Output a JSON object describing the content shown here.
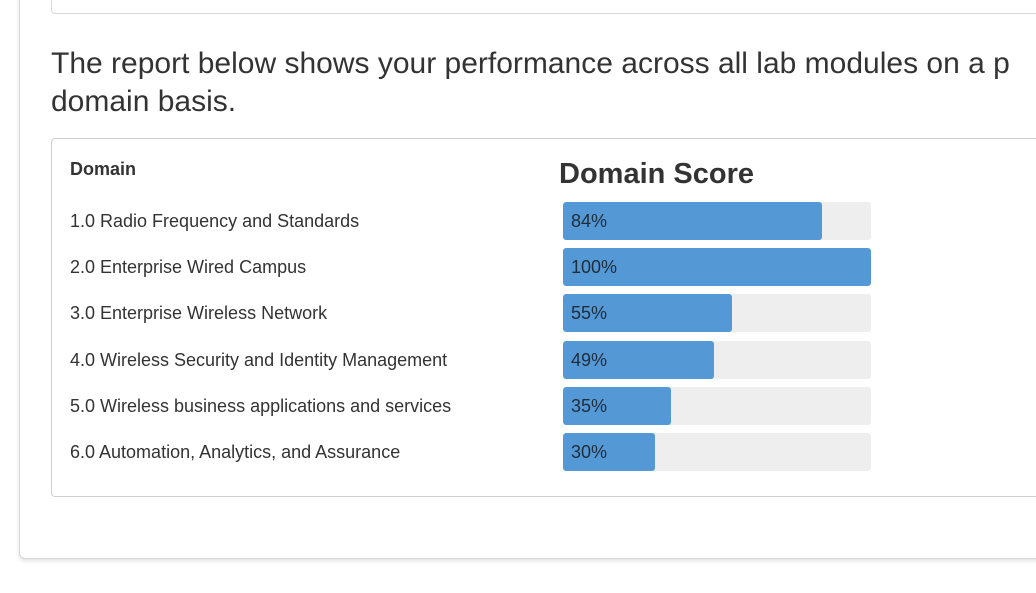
{
  "intro": {
    "line1": "The report below shows your performance across all lab modules on a p",
    "line2": "domain basis."
  },
  "report": {
    "domain_header": "Domain",
    "score_title": "Domain Score",
    "colors": {
      "bar_fill": "#5598d6",
      "bar_track": "#eeeeee"
    },
    "rows": [
      {
        "label": "1.0 Radio Frequency and Standards",
        "score": 84,
        "score_text": "84%"
      },
      {
        "label": "2.0 Enterprise Wired Campus",
        "score": 100,
        "score_text": "100%"
      },
      {
        "label": "3.0 Enterprise Wireless Network",
        "score": 55,
        "score_text": "55%"
      },
      {
        "label": "4.0 Wireless Security and Identity Management",
        "score": 49,
        "score_text": "49%"
      },
      {
        "label": "5.0 Wireless business applications and services",
        "score": 35,
        "score_text": "35%"
      },
      {
        "label": "6.0 Automation, Analytics, and Assurance",
        "score": 30,
        "score_text": "30%"
      }
    ]
  }
}
